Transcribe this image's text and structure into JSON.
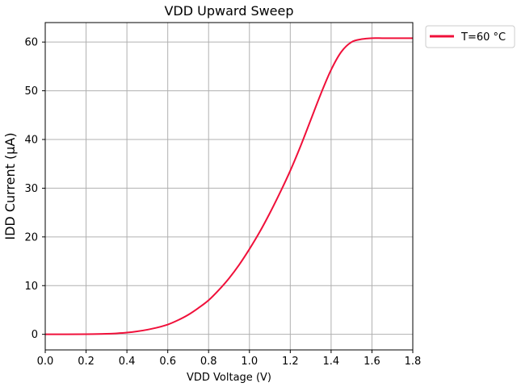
{
  "chart_data": {
    "type": "line",
    "title": "VDD Upward Sweep",
    "xlabel": "VDD Voltage (V)",
    "ylabel": "IDD Current (μA)",
    "xlim": [
      0.0,
      1.8
    ],
    "ylim": [
      -3.2,
      64
    ],
    "xticks": [
      0.0,
      0.2,
      0.4,
      0.6,
      0.8,
      1.0,
      1.2,
      1.4,
      1.6,
      1.8
    ],
    "xtick_labels": [
      "0.0",
      "0.2",
      "0.4",
      "0.6",
      "0.8",
      "1.0",
      "1.2",
      "1.4",
      "1.6",
      "1.8"
    ],
    "yticks": [
      0,
      10,
      20,
      30,
      40,
      50,
      60
    ],
    "ytick_labels": [
      "0",
      "10",
      "20",
      "30",
      "40",
      "50",
      "60"
    ],
    "grid": true,
    "legend_position": "outside-top-right",
    "series": [
      {
        "name": "T=60 °C",
        "color": "#f0103a",
        "x": [
          0.0,
          0.1,
          0.2,
          0.3,
          0.35,
          0.4,
          0.45,
          0.5,
          0.55,
          0.6,
          0.65,
          0.7,
          0.75,
          0.8,
          0.85,
          0.9,
          0.95,
          1.0,
          1.05,
          1.1,
          1.15,
          1.2,
          1.25,
          1.3,
          1.35,
          1.4,
          1.45,
          1.5,
          1.55,
          1.6,
          1.65,
          1.7,
          1.75,
          1.8
        ],
        "y": [
          0.0,
          0.0,
          0.02,
          0.1,
          0.2,
          0.35,
          0.6,
          0.95,
          1.4,
          2.0,
          2.9,
          4.0,
          5.4,
          7.0,
          9.1,
          11.5,
          14.3,
          17.5,
          21.0,
          24.9,
          29.1,
          33.6,
          38.6,
          44.0,
          49.4,
          54.3,
          58.0,
          60.0,
          60.6,
          60.8,
          60.8,
          60.8,
          60.8,
          60.8
        ]
      }
    ]
  }
}
